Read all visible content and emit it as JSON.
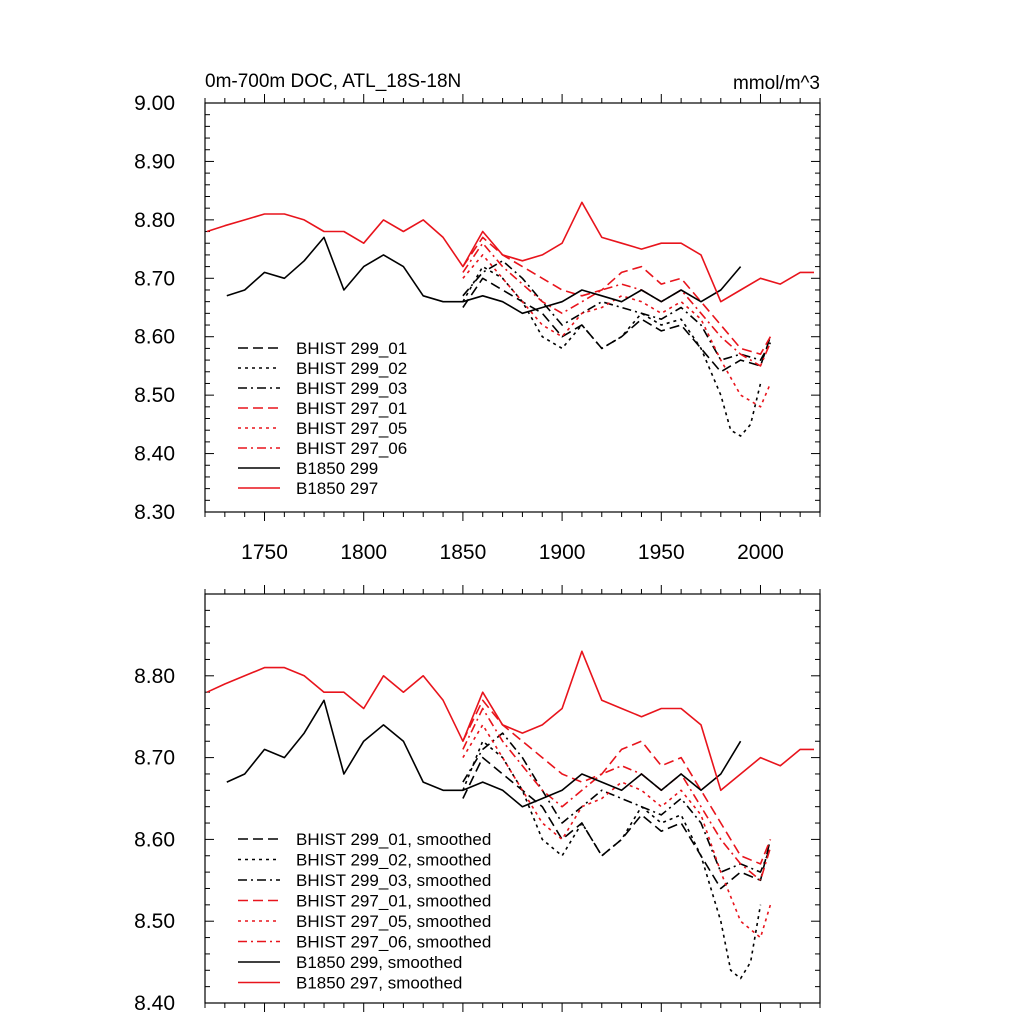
{
  "chart_data": [
    {
      "type": "line",
      "title": "0m-700m DOC, ATL_18S-18N",
      "units": "mmol/m^3",
      "xlim": [
        1720,
        2030
      ],
      "ylim": [
        8.3,
        9.0
      ],
      "xticks": [
        1750,
        1800,
        1850,
        1900,
        1950,
        2000
      ],
      "yticks": [
        8.3,
        8.4,
        8.5,
        8.6,
        8.7,
        8.8,
        8.9,
        9.0
      ],
      "ytick_labels": [
        "8.30",
        "8.40",
        "8.50",
        "8.60",
        "8.70",
        "8.80",
        "8.90",
        "9.00"
      ],
      "grid": false,
      "legend_position": "bottom-left",
      "series": [
        {
          "name": "BHIST 299_01",
          "color": "#000000",
          "dash": "dash",
          "x": [
            1850,
            1860,
            1870,
            1880,
            1890,
            1900,
            1910,
            1920,
            1930,
            1940,
            1950,
            1960,
            1970,
            1980,
            1990,
            2000,
            2005
          ],
          "y": [
            8.65,
            8.7,
            8.68,
            8.66,
            8.64,
            8.6,
            8.62,
            8.58,
            8.6,
            8.63,
            8.61,
            8.62,
            8.58,
            8.54,
            8.56,
            8.55,
            8.6
          ]
        },
        {
          "name": "BHIST 299_02",
          "color": "#000000",
          "dash": "dot",
          "x": [
            1850,
            1860,
            1870,
            1880,
            1890,
            1900,
            1910,
            1920,
            1930,
            1940,
            1950,
            1960,
            1970,
            1980,
            1985,
            1990,
            1995,
            2000
          ],
          "y": [
            8.66,
            8.72,
            8.7,
            8.66,
            8.6,
            8.58,
            8.62,
            8.58,
            8.6,
            8.64,
            8.62,
            8.63,
            8.58,
            8.5,
            8.44,
            8.43,
            8.45,
            8.52
          ]
        },
        {
          "name": "BHIST 299_03",
          "color": "#000000",
          "dash": "dashdot",
          "x": [
            1850,
            1860,
            1870,
            1880,
            1890,
            1900,
            1910,
            1920,
            1930,
            1940,
            1950,
            1960,
            1970,
            1980,
            1990,
            2000,
            2005
          ],
          "y": [
            8.67,
            8.71,
            8.73,
            8.7,
            8.66,
            8.62,
            8.64,
            8.66,
            8.65,
            8.64,
            8.63,
            8.65,
            8.62,
            8.56,
            8.57,
            8.56,
            8.59
          ]
        },
        {
          "name": "BHIST 297_01",
          "color": "#e8141c",
          "dash": "dash",
          "x": [
            1850,
            1860,
            1870,
            1880,
            1890,
            1900,
            1910,
            1920,
            1930,
            1940,
            1950,
            1960,
            1970,
            1980,
            1990,
            2000,
            2005
          ],
          "y": [
            8.72,
            8.77,
            8.74,
            8.72,
            8.7,
            8.68,
            8.67,
            8.68,
            8.71,
            8.72,
            8.69,
            8.7,
            8.66,
            8.62,
            8.58,
            8.57,
            8.6
          ]
        },
        {
          "name": "BHIST 297_05",
          "color": "#e8141c",
          "dash": "dot",
          "x": [
            1850,
            1860,
            1870,
            1880,
            1890,
            1900,
            1910,
            1920,
            1930,
            1940,
            1950,
            1960,
            1970,
            1980,
            1990,
            2000,
            2005
          ],
          "y": [
            8.7,
            8.74,
            8.7,
            8.66,
            8.62,
            8.6,
            8.64,
            8.65,
            8.67,
            8.66,
            8.64,
            8.66,
            8.63,
            8.56,
            8.5,
            8.48,
            8.52
          ]
        },
        {
          "name": "BHIST 297_06",
          "color": "#e8141c",
          "dash": "dashdot",
          "x": [
            1850,
            1860,
            1870,
            1880,
            1890,
            1900,
            1910,
            1920,
            1930,
            1940,
            1950,
            1960,
            1970,
            1980,
            1990,
            2000,
            2005
          ],
          "y": [
            8.71,
            8.76,
            8.72,
            8.69,
            8.66,
            8.64,
            8.66,
            8.68,
            8.69,
            8.68,
            8.66,
            8.68,
            8.64,
            8.6,
            8.57,
            8.55,
            8.59
          ]
        },
        {
          "name": "B1850 299",
          "color": "#000000",
          "dash": "solid",
          "x": [
            1731,
            1740,
            1750,
            1760,
            1770,
            1780,
            1790,
            1800,
            1810,
            1820,
            1830,
            1840,
            1850,
            1860,
            1870,
            1880,
            1890,
            1900,
            1910,
            1920,
            1930,
            1940,
            1950,
            1960,
            1970,
            1980,
            1990
          ],
          "y": [
            8.67,
            8.68,
            8.71,
            8.7,
            8.73,
            8.77,
            8.68,
            8.72,
            8.74,
            8.72,
            8.67,
            8.66,
            8.66,
            8.67,
            8.66,
            8.64,
            8.65,
            8.66,
            8.68,
            8.67,
            8.66,
            8.68,
            8.66,
            8.68,
            8.66,
            8.68,
            8.72
          ]
        },
        {
          "name": "B1850 297",
          "color": "#e8141c",
          "dash": "solid",
          "x": [
            1721,
            1730,
            1740,
            1750,
            1760,
            1770,
            1780,
            1790,
            1800,
            1810,
            1820,
            1830,
            1840,
            1850,
            1860,
            1870,
            1880,
            1890,
            1900,
            1910,
            1920,
            1930,
            1940,
            1950,
            1960,
            1970,
            1980,
            1990,
            2000,
            2010,
            2020,
            2027
          ],
          "y": [
            8.78,
            8.79,
            8.8,
            8.81,
            8.81,
            8.8,
            8.78,
            8.78,
            8.76,
            8.8,
            8.78,
            8.8,
            8.77,
            8.72,
            8.78,
            8.74,
            8.73,
            8.74,
            8.76,
            8.83,
            8.77,
            8.76,
            8.75,
            8.76,
            8.76,
            8.74,
            8.66,
            8.68,
            8.7,
            8.69,
            8.71,
            8.71
          ]
        }
      ]
    },
    {
      "type": "line",
      "title": "",
      "xlim": [
        1720,
        2030
      ],
      "ylim": [
        8.4,
        8.9
      ],
      "xticks": [
        1750,
        1800,
        1850,
        1900,
        1950,
        2000
      ],
      "yticks": [
        8.4,
        8.5,
        8.6,
        8.7,
        8.8
      ],
      "ytick_labels": [
        "8.40",
        "8.50",
        "8.60",
        "8.70",
        "8.80"
      ],
      "grid": false,
      "legend_position": "bottom-left",
      "series": [
        {
          "name": "BHIST 299_01, smoothed",
          "color": "#000000",
          "dash": "dash",
          "x": [
            1850,
            1860,
            1870,
            1880,
            1890,
            1900,
            1910,
            1920,
            1930,
            1940,
            1950,
            1960,
            1970,
            1980,
            1990,
            2000,
            2005
          ],
          "y": [
            8.65,
            8.7,
            8.68,
            8.66,
            8.64,
            8.6,
            8.62,
            8.58,
            8.6,
            8.63,
            8.61,
            8.62,
            8.58,
            8.54,
            8.56,
            8.55,
            8.6
          ]
        },
        {
          "name": "BHIST 299_02, smoothed",
          "color": "#000000",
          "dash": "dot",
          "x": [
            1850,
            1860,
            1870,
            1880,
            1890,
            1900,
            1910,
            1920,
            1930,
            1940,
            1950,
            1960,
            1970,
            1980,
            1985,
            1990,
            1995,
            2000
          ],
          "y": [
            8.66,
            8.72,
            8.7,
            8.66,
            8.6,
            8.58,
            8.62,
            8.58,
            8.6,
            8.64,
            8.62,
            8.63,
            8.58,
            8.5,
            8.44,
            8.43,
            8.45,
            8.52
          ]
        },
        {
          "name": "BHIST 299_03, smoothed",
          "color": "#000000",
          "dash": "dashdot",
          "x": [
            1850,
            1860,
            1870,
            1880,
            1890,
            1900,
            1910,
            1920,
            1930,
            1940,
            1950,
            1960,
            1970,
            1980,
            1990,
            2000,
            2005
          ],
          "y": [
            8.67,
            8.71,
            8.73,
            8.7,
            8.66,
            8.62,
            8.64,
            8.66,
            8.65,
            8.64,
            8.63,
            8.65,
            8.62,
            8.56,
            8.57,
            8.56,
            8.59
          ]
        },
        {
          "name": "BHIST 297_01, smoothed",
          "color": "#e8141c",
          "dash": "dash",
          "x": [
            1850,
            1860,
            1870,
            1880,
            1890,
            1900,
            1910,
            1920,
            1930,
            1940,
            1950,
            1960,
            1970,
            1980,
            1990,
            2000,
            2005
          ],
          "y": [
            8.72,
            8.77,
            8.74,
            8.72,
            8.7,
            8.68,
            8.67,
            8.68,
            8.71,
            8.72,
            8.69,
            8.7,
            8.66,
            8.62,
            8.58,
            8.57,
            8.6
          ]
        },
        {
          "name": "BHIST 297_05, smoothed",
          "color": "#e8141c",
          "dash": "dot",
          "x": [
            1850,
            1860,
            1870,
            1880,
            1890,
            1900,
            1910,
            1920,
            1930,
            1940,
            1950,
            1960,
            1970,
            1980,
            1990,
            2000,
            2005
          ],
          "y": [
            8.7,
            8.74,
            8.7,
            8.66,
            8.62,
            8.6,
            8.64,
            8.65,
            8.67,
            8.66,
            8.64,
            8.66,
            8.63,
            8.56,
            8.5,
            8.48,
            8.52
          ]
        },
        {
          "name": "BHIST 297_06, smoothed",
          "color": "#e8141c",
          "dash": "dashdot",
          "x": [
            1850,
            1860,
            1870,
            1880,
            1890,
            1900,
            1910,
            1920,
            1930,
            1940,
            1950,
            1960,
            1970,
            1980,
            1990,
            2000,
            2005
          ],
          "y": [
            8.71,
            8.76,
            8.72,
            8.69,
            8.66,
            8.64,
            8.66,
            8.68,
            8.69,
            8.68,
            8.66,
            8.68,
            8.64,
            8.6,
            8.57,
            8.55,
            8.59
          ]
        },
        {
          "name": "B1850 299, smoothed",
          "color": "#000000",
          "dash": "solid",
          "x": [
            1731,
            1740,
            1750,
            1760,
            1770,
            1780,
            1790,
            1800,
            1810,
            1820,
            1830,
            1840,
            1850,
            1860,
            1870,
            1880,
            1890,
            1900,
            1910,
            1920,
            1930,
            1940,
            1950,
            1960,
            1970,
            1980,
            1990
          ],
          "y": [
            8.67,
            8.68,
            8.71,
            8.7,
            8.73,
            8.77,
            8.68,
            8.72,
            8.74,
            8.72,
            8.67,
            8.66,
            8.66,
            8.67,
            8.66,
            8.64,
            8.65,
            8.66,
            8.68,
            8.67,
            8.66,
            8.68,
            8.66,
            8.68,
            8.66,
            8.68,
            8.72
          ]
        },
        {
          "name": "B1850 297, smoothed",
          "color": "#e8141c",
          "dash": "solid",
          "x": [
            1721,
            1730,
            1740,
            1750,
            1760,
            1770,
            1780,
            1790,
            1800,
            1810,
            1820,
            1830,
            1840,
            1850,
            1860,
            1870,
            1880,
            1890,
            1900,
            1910,
            1920,
            1930,
            1940,
            1950,
            1960,
            1970,
            1980,
            1990,
            2000,
            2010,
            2020,
            2027
          ],
          "y": [
            8.78,
            8.79,
            8.8,
            8.81,
            8.81,
            8.8,
            8.78,
            8.78,
            8.76,
            8.8,
            8.78,
            8.8,
            8.77,
            8.72,
            8.78,
            8.74,
            8.73,
            8.74,
            8.76,
            8.83,
            8.77,
            8.76,
            8.75,
            8.76,
            8.76,
            8.74,
            8.66,
            8.68,
            8.7,
            8.69,
            8.71,
            8.71
          ]
        }
      ]
    }
  ]
}
